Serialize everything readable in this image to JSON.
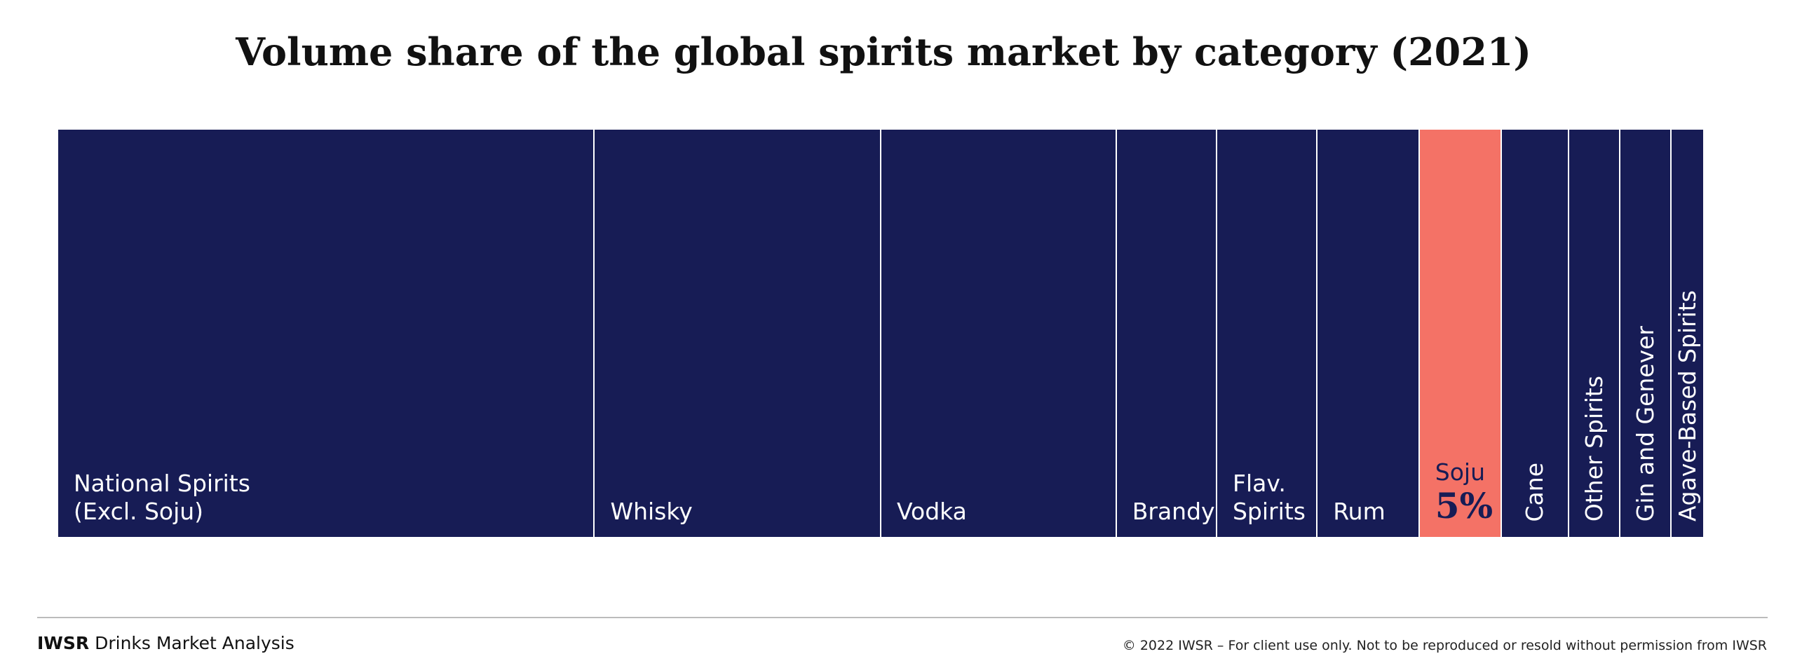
{
  "chart_data": {
    "type": "marimekko",
    "title": "Volume share of the global spirits market by category (2021)",
    "categories": [
      "National Spirits\n(Excl. Soju)",
      "Whisky",
      "Vodka",
      "Brandy",
      "Flav.\nSpirits",
      "Rum",
      "Soju",
      "Cane",
      "Other Spirits",
      "Gin and Genever",
      "Agave-Based Spirits"
    ],
    "values": [
      32.6,
      17.4,
      14.3,
      6.1,
      6.1,
      6.2,
      5,
      4.1,
      3.1,
      3.1,
      2.0
    ],
    "value_labels": [
      null,
      null,
      null,
      null,
      null,
      null,
      "5%",
      null,
      null,
      null,
      null
    ],
    "colors": [
      "#171c55",
      "#171c55",
      "#171c55",
      "#171c55",
      "#171c55",
      "#171c55",
      "#f47266",
      "#171c55",
      "#171c55",
      "#171c55",
      "#171c55"
    ],
    "highlight_text_color": "#171c55"
  },
  "footer": {
    "brand": "IWSR",
    "product": "Drinks Market Analysis",
    "copyright": "© 2022 IWSR – For client use only. Not to be reproduced or resold without permission from IWSR"
  }
}
